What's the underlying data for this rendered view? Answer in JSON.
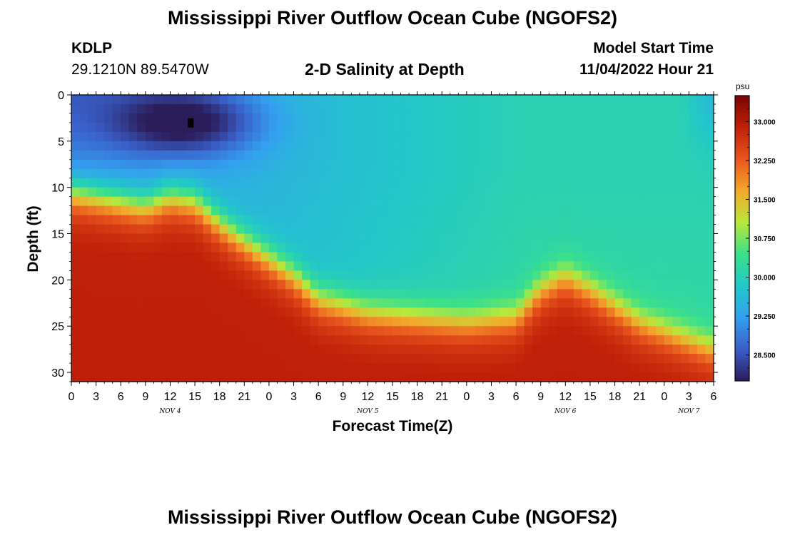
{
  "header": {
    "title": "Mississippi River Outflow Ocean Cube (NGOFS2)",
    "station": "KDLP",
    "coords": "29.1210N  89.5470W",
    "subtitle": "2-D Salinity at Depth",
    "model_label": "Model Start Time",
    "model_time": "11/04/2022 Hour 21"
  },
  "footer": {
    "title": "Mississippi River Outflow Ocean Cube (NGOFS2)"
  },
  "chart_data": {
    "type": "heatmap",
    "title": "2-D Salinity at Depth",
    "xlabel": "Forecast Time(Z)",
    "ylabel": "Depth (ft)",
    "x_ticks": [
      "0",
      "3",
      "6",
      "9",
      "12",
      "15",
      "18",
      "21",
      "0",
      "3",
      "6",
      "9",
      "12",
      "15",
      "18",
      "21",
      "0",
      "3",
      "6",
      "9",
      "12",
      "15",
      "18",
      "21",
      "0",
      "3",
      "6"
    ],
    "x_hours_range": [
      0,
      78
    ],
    "day_labels": [
      {
        "label": "NOV 4",
        "hour": 12
      },
      {
        "label": "NOV 5",
        "hour": 36
      },
      {
        "label": "NOV 6",
        "hour": 60
      },
      {
        "label": "NOV 7",
        "hour": 75
      }
    ],
    "y_ticks": [
      0,
      5,
      10,
      15,
      20,
      25,
      30
    ],
    "ylim": [
      0,
      31
    ],
    "y_inverted": true,
    "colorbar": {
      "unit": "psu",
      "ticks": [
        "33.000",
        "32.250",
        "31.500",
        "30.750",
        "30.000",
        "29.250",
        "28.500"
      ],
      "range": [
        28.0,
        33.5
      ]
    },
    "cells_x": 78,
    "cells_y": 31,
    "salinity_model": {
      "lower_layer": 32.9,
      "upper_layer_base": 29.8,
      "interface_depth_ft": [
        {
          "hour": 0,
          "depth": 10.5
        },
        {
          "hour": 6,
          "depth": 11.5
        },
        {
          "hour": 9,
          "depth": 12.0
        },
        {
          "hour": 12,
          "depth": 11.0
        },
        {
          "hour": 15,
          "depth": 11.5
        },
        {
          "hour": 19,
          "depth": 14.5
        },
        {
          "hour": 23,
          "depth": 17.0
        },
        {
          "hour": 27,
          "depth": 19.5
        },
        {
          "hour": 30,
          "depth": 22.0
        },
        {
          "hour": 36,
          "depth": 23.5
        },
        {
          "hour": 48,
          "depth": 24.5
        },
        {
          "hour": 54,
          "depth": 24.0
        },
        {
          "hour": 57,
          "depth": 21.0
        },
        {
          "hour": 60,
          "depth": 19.5
        },
        {
          "hour": 63,
          "depth": 21.0
        },
        {
          "hour": 69,
          "depth": 24.5
        },
        {
          "hour": 75,
          "depth": 26.5
        },
        {
          "hour": 78,
          "depth": 27.5
        }
      ],
      "fresh_lens": {
        "center_hour": 13.5,
        "center_depth": 3.0,
        "min_value": 28.0
      },
      "max_near_surface": 30.2,
      "observation_marker": {
        "hour": 14.5,
        "depth": 3.0
      }
    },
    "colors": [
      "#2b1c5a",
      "#3a5ec8",
      "#34a0f0",
      "#22c8c8",
      "#3ce08a",
      "#b8e83c",
      "#f4a82c",
      "#e8561e",
      "#c02008",
      "#7a0403"
    ]
  }
}
